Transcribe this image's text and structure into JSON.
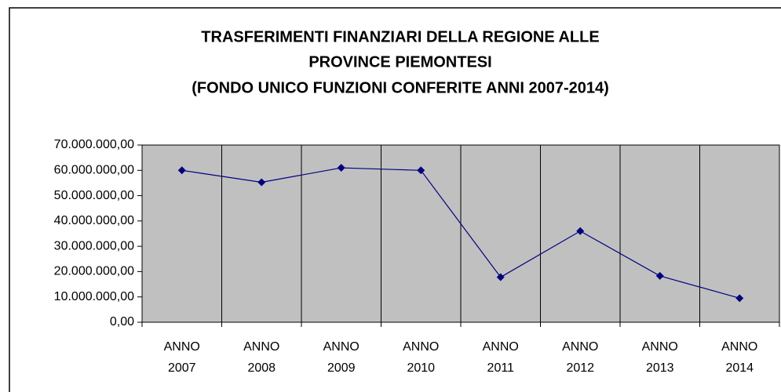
{
  "chart_data": {
    "type": "line",
    "title": [
      "TRASFERIMENTI FINANZIARI DELLA REGIONE ALLE",
      "PROVINCE PIEMONTESI",
      "(FONDO UNICO FUNZIONI CONFERITE ANNI 2007-2014)"
    ],
    "categories": [
      "ANNO 2007",
      "ANNO 2008",
      "ANNO 2009",
      "ANNO 2010",
      "ANNO 2011",
      "ANNO 2012",
      "ANNO 2013",
      "ANNO 2014"
    ],
    "values": [
      60000000,
      55300000,
      61000000,
      60000000,
      17800000,
      36000000,
      18300000,
      9500000
    ],
    "color": "#000080",
    "ylim": [
      0,
      70000000
    ],
    "yticks": [
      {
        "value": 0,
        "label": "0,00"
      },
      {
        "value": 10000000,
        "label": "10.000.000,00"
      },
      {
        "value": 20000000,
        "label": "20.000.000,00"
      },
      {
        "value": 30000000,
        "label": "30.000.000,00"
      },
      {
        "value": 40000000,
        "label": "40.000.000,00"
      },
      {
        "value": 50000000,
        "label": "50.000.000,00"
      },
      {
        "value": 60000000,
        "label": "60.000.000,00"
      },
      {
        "value": 70000000,
        "label": "70.000.000,00"
      }
    ],
    "plot_background": "#c0c0c0"
  }
}
